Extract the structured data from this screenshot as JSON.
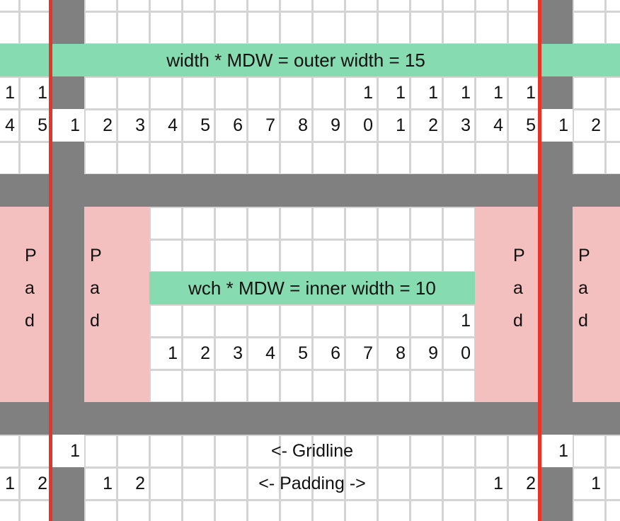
{
  "colors": {
    "gutter": "#808080",
    "padding": "#f4bfbf",
    "band": "#86dcb0",
    "border": "#e83427",
    "gridline": "#d4d4d4"
  },
  "outer_band_label": "width * MDW = outer width = 15",
  "inner_band_label": "wch * MDW = inner width = 10",
  "outer_tens_row": [
    "1",
    "1",
    "",
    "",
    "",
    "",
    "",
    "",
    "",
    "",
    "",
    "1",
    "1",
    "1",
    "1",
    "1",
    "1",
    "",
    "",
    ""
  ],
  "outer_units_row": [
    "4",
    "5",
    "1",
    "2",
    "3",
    "4",
    "5",
    "6",
    "7",
    "8",
    "9",
    "0",
    "1",
    "2",
    "3",
    "4",
    "5",
    "1",
    "2",
    ""
  ],
  "inner_tens_row": [
    "",
    "",
    "",
    "",
    "",
    "",
    "",
    "",
    "",
    "",
    "",
    "",
    "",
    "",
    "1",
    "",
    "",
    "",
    "",
    ""
  ],
  "inner_units_row": [
    "",
    "",
    "",
    "",
    "",
    "1",
    "2",
    "3",
    "4",
    "5",
    "6",
    "7",
    "8",
    "9",
    "0",
    "",
    "",
    "",
    "",
    ""
  ],
  "pad_letters": [
    "P",
    "a",
    "d"
  ],
  "gridline_row": {
    "cells": [
      "",
      "",
      "1",
      "",
      "",
      "",
      "",
      "",
      "",
      "",
      "",
      "",
      "",
      "",
      "",
      "",
      "",
      "1",
      "",
      ""
    ],
    "label": "<- Gridline"
  },
  "padding_row": {
    "cells": [
      "1",
      "2",
      "",
      "1",
      "2",
      "",
      "",
      "",
      "",
      "",
      "",
      "",
      "",
      "",
      "",
      "1",
      "2",
      "",
      "1",
      ""
    ],
    "label": "<- Padding ->"
  }
}
